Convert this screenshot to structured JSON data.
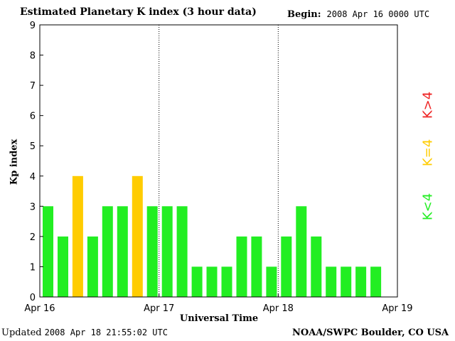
{
  "header": {
    "title": "Estimated Planetary K index (3 hour data)",
    "begin_label": "Begin:",
    "begin_value": "2008 Apr 16 0000 UTC"
  },
  "footer": {
    "updated_label": "Updated",
    "updated_value": "2008 Apr 18 21:55:02 UTC",
    "credit": "NOAA/SWPC Boulder, CO USA"
  },
  "legend": {
    "low": "K<4",
    "mid": "K=4",
    "high": "K>4"
  },
  "colors": {
    "low": "#22ee22",
    "mid": "#ffcc00",
    "high": "#ee2222"
  },
  "chart_data": {
    "type": "bar",
    "title": "Estimated Planetary K index (3 hour data)",
    "xlabel": "Universal Time",
    "ylabel": "Kp index",
    "ylim": [
      0,
      9
    ],
    "yticks": [
      0,
      1,
      2,
      3,
      4,
      5,
      6,
      7,
      8,
      9
    ],
    "xticks": [
      "Apr 16",
      "Apr 17",
      "Apr 18",
      "Apr 19"
    ],
    "interval_hours": 3,
    "values": [
      3,
      2,
      4,
      2,
      3,
      3,
      4,
      3,
      3,
      3,
      1,
      1,
      1,
      2,
      2,
      1,
      2,
      3,
      2,
      1,
      1,
      1,
      1
    ],
    "day_separators": [
      "Apr 17",
      "Apr 18"
    ]
  }
}
